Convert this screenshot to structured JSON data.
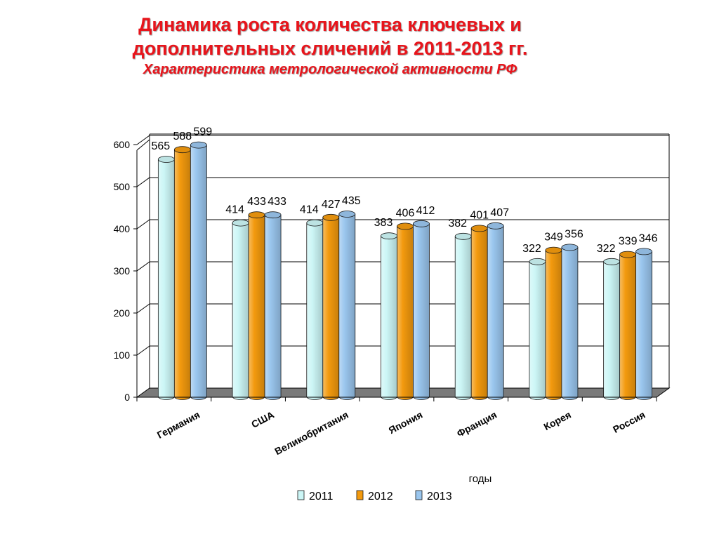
{
  "title": {
    "line1": "Динамика роста количества ключевых и",
    "line2": "дополнительных сличений в 2011-2013 гг.",
    "subtitle": "Характеристика метрологической активности РФ"
  },
  "chart_data": {
    "type": "bar",
    "style": "3d-cylinder",
    "categories": [
      "Германия",
      "США",
      "Великобритания",
      "Япония",
      "Франция",
      "Корея",
      "Россия"
    ],
    "series": [
      {
        "name": "2011",
        "values": [
          565,
          414,
          414,
          383,
          382,
          322,
          322
        ],
        "color": "#ccf6f6"
      },
      {
        "name": "2012",
        "values": [
          588,
          433,
          427,
          406,
          401,
          349,
          339
        ],
        "color": "#f39a0e"
      },
      {
        "name": "2013",
        "values": [
          599,
          433,
          435,
          412,
          407,
          356,
          346
        ],
        "color": "#9ac6ee"
      }
    ],
    "xlabel": "годы",
    "ylabel": "",
    "ylim": [
      0,
      600
    ],
    "yticks": [
      0,
      100,
      200,
      300,
      400,
      500,
      600
    ],
    "grid": true,
    "legend": "bottom"
  }
}
